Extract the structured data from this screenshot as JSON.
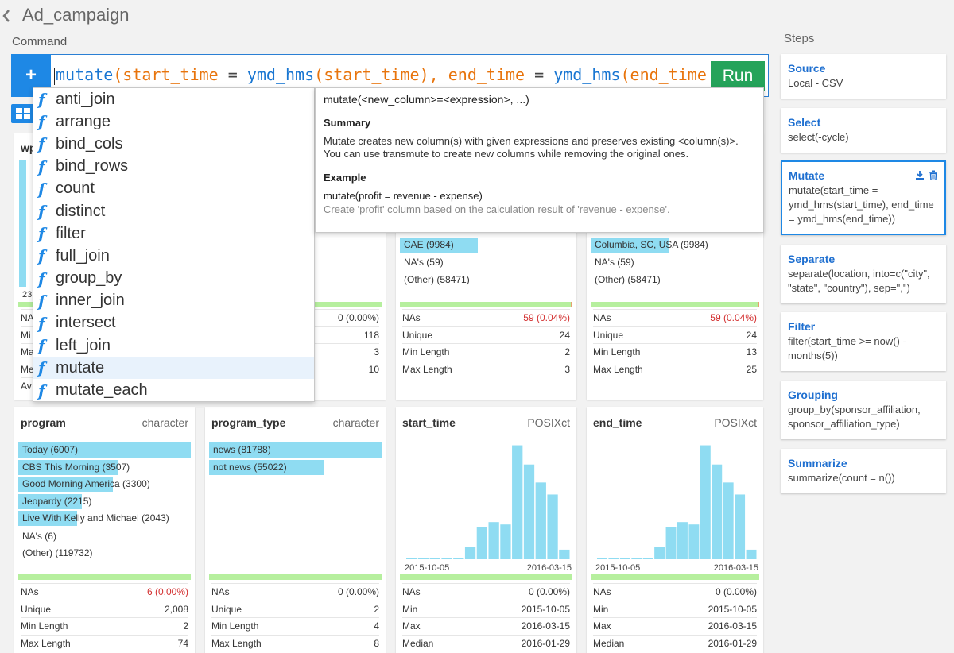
{
  "header": {
    "title": "Ad_campaign",
    "command_label": "Command"
  },
  "command": {
    "tokens": [
      {
        "t": "mutate",
        "c": "fn"
      },
      {
        "t": "(",
        "c": "arg"
      },
      {
        "t": "start_time",
        "c": "arg"
      },
      {
        "t": " = ",
        "c": "op"
      },
      {
        "t": "ymd_hms",
        "c": "fn"
      },
      {
        "t": "(",
        "c": "arg"
      },
      {
        "t": "start_time",
        "c": "arg"
      },
      {
        "t": "), ",
        "c": "arg"
      },
      {
        "t": "end_time",
        "c": "arg"
      },
      {
        "t": " = ",
        "c": "op"
      },
      {
        "t": "ymd_hms",
        "c": "fn"
      },
      {
        "t": "(",
        "c": "arg"
      },
      {
        "t": "end_time",
        "c": "arg"
      }
    ],
    "plus_label": "+",
    "run_label": "Run"
  },
  "autocomplete": {
    "items": [
      "anti_join",
      "arrange",
      "bind_cols",
      "bind_rows",
      "count",
      "distinct",
      "filter",
      "full_join",
      "group_by",
      "inner_join",
      "intersect",
      "left_join",
      "mutate",
      "mutate_each"
    ],
    "selected_index": 12,
    "glyph": "f",
    "help": {
      "signature": "mutate(<new_column>=<expression>, ...)",
      "summary_title": "Summary",
      "summary_text": "Mutate creates new column(s) with given expressions and preserves existing <column(s)>. You can use transmute to create new columns while removing the original ones.",
      "example_title": "Example",
      "example_code": "mutate(profit = revenue - expense)",
      "example_desc": "Create 'profit' column based on the calculation result of 'revenue - expense'."
    }
  },
  "steps": {
    "label": "Steps",
    "items": [
      {
        "title": "Source",
        "desc": "Local - CSV"
      },
      {
        "title": "Select",
        "desc": "select(-cycle)"
      },
      {
        "title": "Mutate",
        "desc": "mutate(start_time = ymd_hms(start_time), end_time = ymd_hms(end_time))"
      },
      {
        "title": "Separate",
        "desc": "separate(location, into=c(\"city\", \"state\", \"country\"), sep=\",\")"
      },
      {
        "title": "Filter",
        "desc": "filter(start_time >= now() - months(5))"
      },
      {
        "title": "Grouping",
        "desc": "group_by(sponsor_affiliation, sponsor_affiliation_type)"
      },
      {
        "title": "Summarize",
        "desc": "summarize(count = n())"
      }
    ]
  },
  "top_cards": {
    "card0": {
      "name_partial": "wp",
      "axis_partial": "23",
      "stats": [
        "NA",
        "Mi",
        "Ma",
        "Me",
        "Av"
      ]
    },
    "card1": {
      "stats": [
        {
          "v": "0 (0.00%)",
          "red": false
        },
        {
          "v": "118"
        },
        {
          "v": "3"
        },
        {
          "v": "10"
        }
      ]
    },
    "card2": {
      "bars": [
        "CAE (9984)"
      ],
      "plain": [
        "NA's (59)",
        "(Other) (58471)"
      ],
      "stats": [
        {
          "k": "NAs",
          "v": "59 (0.04%)",
          "red": true
        },
        {
          "k": "Unique",
          "v": "24"
        },
        {
          "k": "Min Length",
          "v": "2"
        },
        {
          "k": "Max Length",
          "v": "3"
        }
      ]
    },
    "card3": {
      "bars": [
        "Columbia, SC, USA (9984)"
      ],
      "plain": [
        "NA's (59)",
        "(Other) (58471)"
      ],
      "stats": [
        {
          "k": "NAs",
          "v": "59 (0.04%)",
          "red": true
        },
        {
          "k": "Unique",
          "v": "24"
        },
        {
          "k": "Min Length",
          "v": "13"
        },
        {
          "k": "Max Length",
          "v": "25"
        }
      ]
    }
  },
  "bottom_cards": [
    {
      "name": "program",
      "type": "character",
      "bars": [
        {
          "label": "Today (6007)",
          "frac": 1.0
        },
        {
          "label": "CBS This Morning (3507)",
          "frac": 0.58
        },
        {
          "label": "Good Morning America (3300)",
          "frac": 0.55
        },
        {
          "label": "Jeopardy (2215)",
          "frac": 0.37
        },
        {
          "label": "Live With Kelly and Michael (2043)",
          "frac": 0.34
        }
      ],
      "plain": [
        "NA's (6)",
        "(Other) (119732)"
      ],
      "stats": [
        {
          "k": "NAs",
          "v": "6 (0.00%)",
          "red": true
        },
        {
          "k": "Unique",
          "v": "2,008"
        },
        {
          "k": "Min Length",
          "v": "2"
        },
        {
          "k": "Max Length",
          "v": "74"
        }
      ]
    },
    {
      "name": "program_type",
      "type": "character",
      "bars": [
        {
          "label": "news (81788)",
          "frac": 1.0
        },
        {
          "label": "not news (55022)",
          "frac": 0.67
        }
      ],
      "plain": [],
      "stats": [
        {
          "k": "NAs",
          "v": "0 (0.00%)"
        },
        {
          "k": "Unique",
          "v": "2"
        },
        {
          "k": "Min Length",
          "v": "4"
        },
        {
          "k": "Max Length",
          "v": "8"
        }
      ]
    },
    {
      "name": "start_time",
      "type": "POSIXct",
      "x_axis": [
        "2015-10-05",
        "2016-03-15"
      ],
      "stats": [
        {
          "k": "NAs",
          "v": "0 (0.00%)"
        },
        {
          "k": "Min",
          "v": "2015-10-05"
        },
        {
          "k": "Max",
          "v": "2016-03-15"
        },
        {
          "k": "Median",
          "v": "2016-01-29"
        }
      ]
    },
    {
      "name": "end_time",
      "type": "POSIXct",
      "x_axis": [
        "2015-10-05",
        "2016-03-15"
      ],
      "stats": [
        {
          "k": "NAs",
          "v": "0 (0.00%)"
        },
        {
          "k": "Min",
          "v": "2015-10-05"
        },
        {
          "k": "Max",
          "v": "2016-03-15"
        },
        {
          "k": "Median",
          "v": "2016-01-29"
        }
      ]
    }
  ],
  "histogram": {
    "relative_heights": [
      0.005,
      0.005,
      0.005,
      0.005,
      0.005,
      0.1,
      0.27,
      0.31,
      0.29,
      0.95,
      0.79,
      0.64,
      0.54,
      0.08
    ]
  },
  "colors": {
    "accent": "#1e88e5",
    "run": "#25a35a",
    "bar": "#8fdcf2",
    "na_ok": "#b6ef9e",
    "na_red": "#d32f2f",
    "fn": "#1976d2",
    "arg": "#e8740c"
  },
  "icons": {
    "back": "chevron-left-icon",
    "grid": "grid-icon",
    "download": "download-icon",
    "trash": "trash-icon"
  }
}
